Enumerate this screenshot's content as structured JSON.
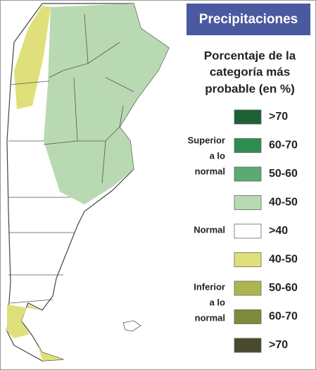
{
  "header": {
    "title": "Precipitaciones",
    "subtitle": [
      "Porcentaje de la",
      "categoría más",
      "probable (en %)"
    ]
  },
  "legend": {
    "items": [
      {
        "label": ">70",
        "color": "#1f5f36"
      },
      {
        "label": "60-70",
        "color": "#2f8c50"
      },
      {
        "label": "50-60",
        "color": "#5aab70"
      },
      {
        "label": "40-50",
        "color": "#b9d9b2"
      },
      {
        "label": ">40",
        "color": "#ffffff"
      },
      {
        "label": "40-50",
        "color": "#e0e07a"
      },
      {
        "label": "50-60",
        "color": "#b0b44c"
      },
      {
        "label": "60-70",
        "color": "#7f8a3a"
      },
      {
        "label": ">70",
        "color": "#4a4a2e"
      }
    ],
    "groups": [
      {
        "lines": [
          "Superior",
          "a lo",
          "normal"
        ]
      },
      {
        "lines": [
          "Normal"
        ]
      },
      {
        "lines": [
          "Inferior",
          "a lo",
          "normal"
        ]
      }
    ]
  }
}
